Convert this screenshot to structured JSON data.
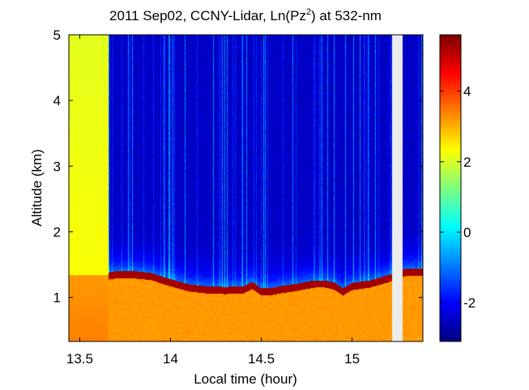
{
  "chart_data": {
    "type": "heatmap",
    "title_main": "2011 Sep02, CCNY-Lidar, Ln(Pz",
    "title_sup": "2",
    "title_tail": ") at 532-nm",
    "xlabel": "Local time (hour)",
    "ylabel": "Altitude (km)",
    "xlim": [
      13.44,
      15.39
    ],
    "ylim": [
      0.33,
      5.0
    ],
    "xticks": [
      13.5,
      14,
      14.5,
      15
    ],
    "xtick_labels": [
      "13.5",
      "14",
      "14.5",
      "15"
    ],
    "yticks": [
      1,
      2,
      3,
      4,
      5
    ],
    "ytick_labels": [
      "1",
      "2",
      "3",
      "4",
      "5"
    ],
    "colorbar": {
      "colormap": "jet",
      "range": [
        -3.1,
        5.6
      ],
      "ticks": [
        -2,
        0,
        2,
        4
      ],
      "tick_labels": [
        "-2",
        "0",
        "2",
        "4"
      ]
    },
    "data_gaps": [
      [
        15.22,
        15.28
      ]
    ],
    "boundary_layer_top_km": {
      "time": [
        13.44,
        13.66,
        13.7,
        13.8,
        13.9,
        13.95,
        14.0,
        14.05,
        14.1,
        14.2,
        14.3,
        14.4,
        14.45,
        14.5,
        14.55,
        14.6,
        14.7,
        14.75,
        14.8,
        14.85,
        14.9,
        14.95,
        15.0,
        15.1,
        15.2,
        15.3,
        15.39
      ],
      "altitude": [
        1.34,
        1.34,
        1.36,
        1.36,
        1.33,
        1.28,
        1.24,
        1.2,
        1.16,
        1.13,
        1.12,
        1.13,
        1.2,
        1.1,
        1.1,
        1.13,
        1.17,
        1.2,
        1.22,
        1.22,
        1.19,
        1.1,
        1.18,
        1.22,
        1.3,
        1.4,
        1.4
      ]
    },
    "cloud_free_background_value": -2.5,
    "aerosol_layer_value": 3.2,
    "boundary_layer_top_value": 5.3
  }
}
